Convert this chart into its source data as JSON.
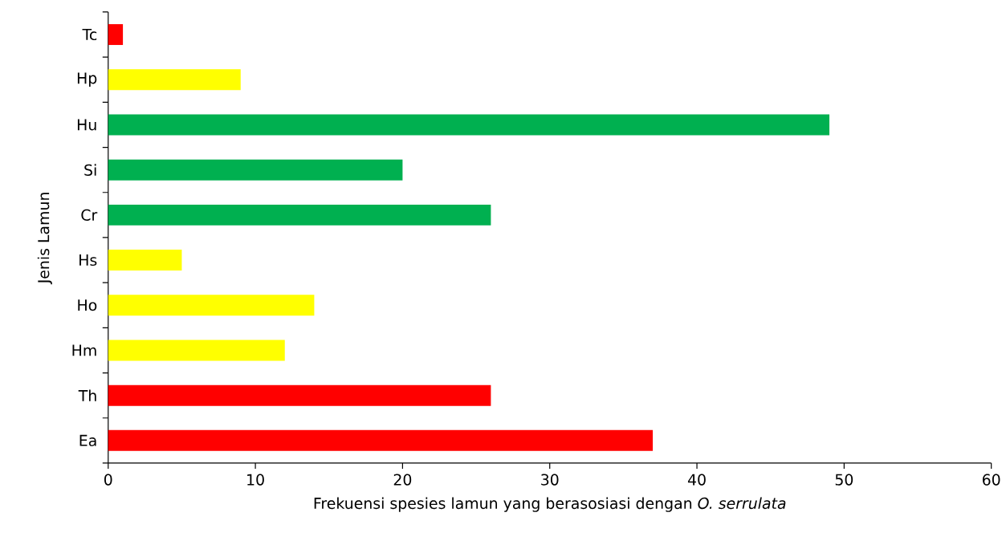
{
  "chart_data": {
    "type": "bar",
    "orientation": "horizontal",
    "xlabel": "Frekuensi spesies lamun yang berasosiasi dengan *O. serrulata*",
    "ylabel": "Jenis Lamun",
    "categories": [
      "Tc",
      "Hp",
      "Hu",
      "Si",
      "Cr",
      "Hs",
      "Ho",
      "Hm",
      "Th",
      "Ea"
    ],
    "values": [
      1,
      9,
      49,
      20,
      26,
      5,
      14,
      12,
      26,
      37
    ],
    "colors": [
      "#ff0000",
      "#ffff00",
      "#00b050",
      "#00b050",
      "#00b050",
      "#ffff00",
      "#ffff00",
      "#ffff00",
      "#ff0000",
      "#ff0000"
    ],
    "xlim": [
      0,
      60
    ],
    "xticks": [
      0,
      10,
      20,
      30,
      40,
      50,
      60
    ]
  }
}
